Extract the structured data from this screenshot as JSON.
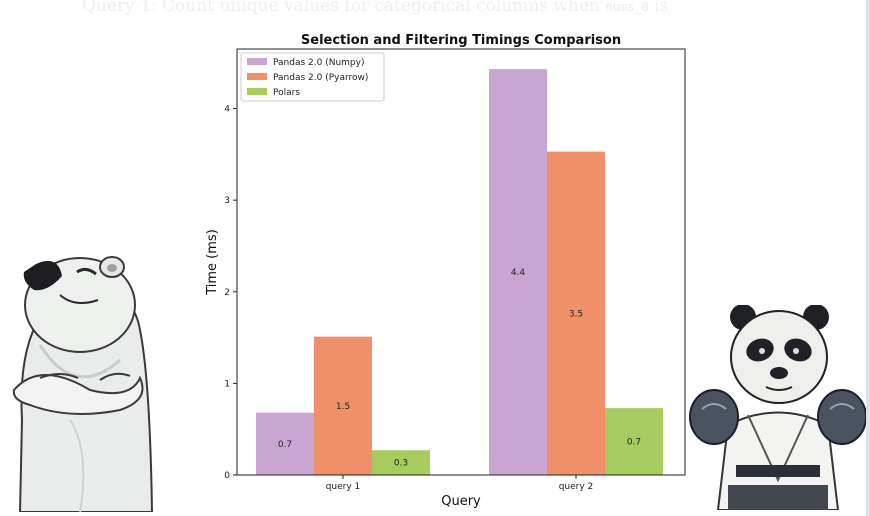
{
  "page": {
    "heading_text": "Query 1: Count unique values for categorical columns when",
    "heading_code": "nums_8",
    "heading_tail": "is"
  },
  "chart_data": {
    "type": "bar",
    "title": "Selection and Filtering Timings Comparison",
    "xlabel": "Query",
    "ylabel": "Time (ms)",
    "categories": [
      "query 1",
      "query 2"
    ],
    "series": [
      {
        "name": "Pandas 2.0 (Numpy)",
        "values": [
          0.68,
          4.43
        ],
        "labels": [
          "0.7",
          "4.4"
        ],
        "color": "#c9a6d1"
      },
      {
        "name": "Pandas 2.0 (Pyarrow)",
        "values": [
          1.51,
          3.53
        ],
        "labels": [
          "1.5",
          "3.5"
        ],
        "color": "#f0906b"
      },
      {
        "name": "Polars",
        "values": [
          0.27,
          0.73
        ],
        "labels": [
          "0.3",
          "0.7"
        ],
        "color": "#a6cb5f"
      }
    ],
    "ylim": [
      0,
      4.65
    ],
    "yticks": [
      0,
      1,
      2,
      3,
      4
    ],
    "grid": false,
    "legend_position": "top-left"
  },
  "illustrations": {
    "left": "polar-bear-arms-crossed",
    "right": "panda-boxer"
  }
}
